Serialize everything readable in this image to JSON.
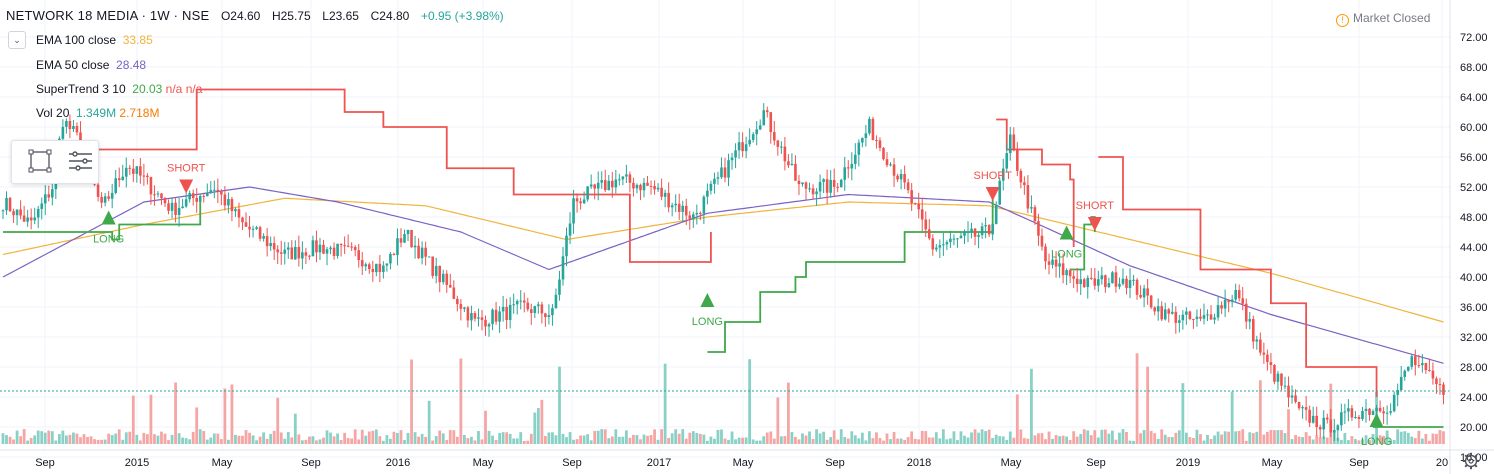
{
  "header": {
    "symbol": "NETWORK 18 MEDIA · 1W · NSE",
    "open": "O24.60",
    "high": "H25.75",
    "low": "L23.65",
    "close": "C24.80",
    "change": "+0.95 (+3.98%)"
  },
  "legend": [
    {
      "label": "EMA 100 close",
      "values": [
        "33.85"
      ],
      "colors": [
        "#f0b43c"
      ]
    },
    {
      "label": "EMA 50 close",
      "values": [
        "28.48"
      ],
      "colors": [
        "#7b61c4"
      ]
    },
    {
      "label": "SuperTrend 3 10",
      "values": [
        "20.03",
        "n/a",
        "n/a"
      ],
      "colors": [
        "#3fa84a",
        "#ef5350",
        "#ef5350"
      ]
    },
    {
      "label": "Vol 20",
      "values": [
        "1.349M",
        "2.718M"
      ],
      "colors": [
        "#26a69a",
        "#f57c00"
      ]
    }
  ],
  "status": {
    "market": "Market Closed",
    "icon": "info-icon"
  },
  "colors": {
    "up": "#26a69a",
    "down": "#ef5350",
    "upvol": "#89d1c6",
    "downvol": "#f5a6a4",
    "st_up": "#3fa84a",
    "st_down": "#ef5350",
    "ema100": "#f0b43c",
    "ema50": "#7b61c4"
  },
  "chart_data": {
    "type": "candlestick",
    "title": "NETWORK 18 MEDIA · 1W · NSE",
    "timeframe": "1W",
    "ylim": [
      14,
      74
    ],
    "y_ticks": [
      "72.00",
      "68.00",
      "64.00",
      "60.00",
      "56.00",
      "52.00",
      "48.00",
      "44.00",
      "40.00",
      "36.00",
      "32.00",
      "28.00",
      "24.00",
      "20.00",
      "16.00"
    ],
    "x_ticks": [
      "Sep",
      "2015",
      "May",
      "Sep",
      "2016",
      "May",
      "Sep",
      "2017",
      "May",
      "Sep",
      "2018",
      "May",
      "Sep",
      "2019",
      "May",
      "Sep",
      "20"
    ],
    "last_price": "24.80",
    "close_anchors": [
      [
        0,
        50
      ],
      [
        8,
        47
      ],
      [
        14,
        52
      ],
      [
        17,
        61
      ],
      [
        22,
        58
      ],
      [
        28,
        49
      ],
      [
        35,
        55
      ],
      [
        40,
        53
      ],
      [
        48,
        49
      ],
      [
        60,
        52
      ],
      [
        68,
        47
      ],
      [
        80,
        43
      ],
      [
        90,
        44
      ],
      [
        100,
        43
      ],
      [
        108,
        41
      ],
      [
        114,
        46
      ],
      [
        124,
        40
      ],
      [
        134,
        34
      ],
      [
        148,
        36
      ],
      [
        156,
        35
      ],
      [
        162,
        50
      ],
      [
        174,
        53
      ],
      [
        184,
        52
      ],
      [
        196,
        48
      ],
      [
        206,
        55
      ],
      [
        216,
        62
      ],
      [
        226,
        52
      ],
      [
        236,
        52
      ],
      [
        246,
        60
      ],
      [
        256,
        52
      ],
      [
        264,
        44
      ],
      [
        272,
        45
      ],
      [
        280,
        46
      ],
      [
        286,
        58
      ],
      [
        296,
        42
      ],
      [
        308,
        39
      ],
      [
        318,
        40
      ],
      [
        330,
        35
      ],
      [
        340,
        34
      ],
      [
        350,
        38
      ],
      [
        358,
        29
      ],
      [
        368,
        22
      ],
      [
        376,
        20
      ],
      [
        384,
        22
      ],
      [
        394,
        23
      ],
      [
        400,
        29
      ],
      [
        408,
        25
      ]
    ],
    "series": [
      {
        "name": "EMA 100 close",
        "last": "33.85",
        "anchors": [
          [
            0,
            43
          ],
          [
            40,
            47
          ],
          [
            80,
            50.5
          ],
          [
            120,
            49.5
          ],
          [
            160,
            45
          ],
          [
            200,
            48
          ],
          [
            240,
            50
          ],
          [
            280,
            49.5
          ],
          [
            320,
            45
          ],
          [
            360,
            40.5
          ],
          [
            409,
            34
          ]
        ]
      },
      {
        "name": "EMA 50 close",
        "last": "28.48",
        "anchors": [
          [
            0,
            40
          ],
          [
            40,
            50
          ],
          [
            70,
            52
          ],
          [
            95,
            50
          ],
          [
            130,
            46
          ],
          [
            155,
            41
          ],
          [
            200,
            48.5
          ],
          [
            240,
            51
          ],
          [
            280,
            50
          ],
          [
            320,
            41.5
          ],
          [
            360,
            35
          ],
          [
            409,
            28.5
          ]
        ]
      },
      {
        "name": "SuperTrend 3 10",
        "last": "20.03"
      },
      {
        "name": "Vol 20",
        "last": "1.349M",
        "avg": "2.718M"
      }
    ],
    "annotations": [
      {
        "text": "LONG",
        "type": "buy",
        "bar": 30,
        "price": 47
      },
      {
        "text": "SHORT",
        "type": "sell",
        "bar": 52,
        "price": 53
      },
      {
        "text": "LONG",
        "type": "buy",
        "bar": 200,
        "price": 36
      },
      {
        "text": "SHORT",
        "type": "sell",
        "bar": 281,
        "price": 52
      },
      {
        "text": "LONG",
        "type": "buy",
        "bar": 302,
        "price": 45
      },
      {
        "text": "SHORT",
        "type": "sell",
        "bar": 310,
        "price": 48
      },
      {
        "text": "LONG",
        "type": "buy",
        "bar": 390,
        "price": 20
      }
    ],
    "supertrend_segments": [
      {
        "dir": "up",
        "points": [
          [
            0,
            46
          ],
          [
            30,
            46
          ],
          [
            31,
            45
          ],
          [
            33,
            47
          ],
          [
            55,
            47
          ],
          [
            56,
            50
          ]
        ]
      },
      {
        "dir": "down",
        "points": [
          [
            17,
            57
          ],
          [
            55,
            65
          ],
          [
            85,
            65
          ],
          [
            97,
            62
          ],
          [
            108,
            60
          ],
          [
            126,
            54.5
          ],
          [
            145,
            51
          ],
          [
            168,
            51
          ],
          [
            178,
            42
          ],
          [
            200,
            42
          ],
          [
            201,
            46
          ]
        ]
      },
      {
        "dir": "up",
        "points": [
          [
            200,
            30
          ],
          [
            205,
            34
          ],
          [
            215,
            38
          ],
          [
            225,
            40
          ],
          [
            228,
            42
          ],
          [
            251,
            42
          ],
          [
            256,
            46
          ],
          [
            280,
            46
          ],
          [
            281,
            52
          ]
        ]
      },
      {
        "dir": "down",
        "points": [
          [
            282,
            61
          ],
          [
            285,
            57
          ],
          [
            295,
            55
          ],
          [
            303,
            53
          ],
          [
            304,
            44
          ]
        ]
      },
      {
        "dir": "up",
        "points": [
          [
            303,
            41
          ],
          [
            307,
            47
          ],
          [
            309,
            48
          ],
          [
            310,
            46
          ]
        ]
      },
      {
        "dir": "down",
        "points": [
          [
            311,
            56
          ],
          [
            318,
            49
          ],
          [
            331,
            49
          ],
          [
            340,
            41
          ],
          [
            350,
            41
          ],
          [
            360,
            36.5
          ],
          [
            370,
            28
          ],
          [
            389,
            28
          ],
          [
            390,
            24
          ]
        ]
      },
      {
        "dir": "up",
        "points": [
          [
            389,
            20
          ],
          [
            409,
            20
          ]
        ]
      }
    ]
  }
}
